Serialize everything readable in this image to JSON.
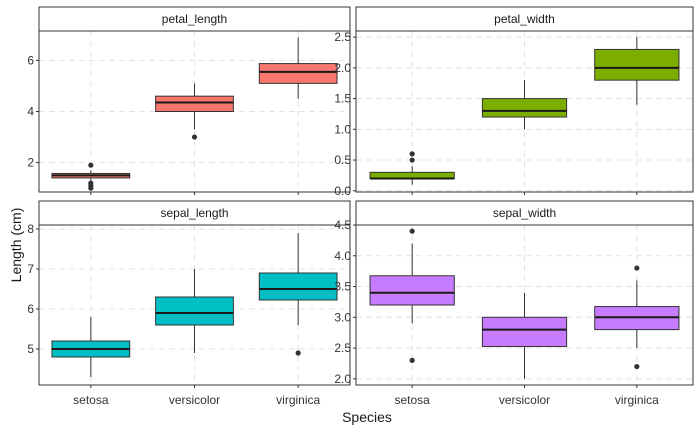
{
  "chart_data": {
    "type": "boxplot",
    "xlabel": "Species",
    "ylabel": "Length (cm)",
    "categories": [
      "setosa",
      "versicolor",
      "virginica"
    ],
    "grid": true,
    "facets": [
      {
        "name": "petal_length",
        "fill": "#F8766D",
        "ylim": [
          0.85,
          7.15
        ],
        "yticks": [
          2,
          4,
          6
        ],
        "boxes": [
          {
            "category": "setosa",
            "min": 1.3,
            "q1": 1.4,
            "median": 1.5,
            "q3": 1.575,
            "max": 1.7,
            "outliers": [
              1.0,
              1.1,
              1.2,
              1.9
            ]
          },
          {
            "category": "versicolor",
            "min": 3.3,
            "q1": 4.0,
            "median": 4.35,
            "q3": 4.6,
            "max": 5.1,
            "outliers": [
              3.0
            ]
          },
          {
            "category": "virginica",
            "min": 4.5,
            "q1": 5.1,
            "median": 5.55,
            "q3": 5.875,
            "max": 6.9,
            "outliers": []
          }
        ]
      },
      {
        "name": "petal_width",
        "fill": "#7CAE00",
        "ylim": [
          -0.02,
          2.6
        ],
        "yticks": [
          0.0,
          0.5,
          1.0,
          1.5,
          2.0,
          2.5
        ],
        "boxes": [
          {
            "category": "setosa",
            "min": 0.1,
            "q1": 0.2,
            "median": 0.2,
            "q3": 0.3,
            "max": 0.4,
            "outliers": [
              0.5,
              0.6
            ]
          },
          {
            "category": "versicolor",
            "min": 1.0,
            "q1": 1.2,
            "median": 1.3,
            "q3": 1.5,
            "max": 1.8,
            "outliers": []
          },
          {
            "category": "virginica",
            "min": 1.4,
            "q1": 1.8,
            "median": 2.0,
            "q3": 2.3,
            "max": 2.5,
            "outliers": []
          }
        ]
      },
      {
        "name": "sepal_length",
        "fill": "#00BFC4",
        "ylim": [
          4.1,
          8.1
        ],
        "yticks": [
          5,
          6,
          7,
          8
        ],
        "boxes": [
          {
            "category": "setosa",
            "min": 4.3,
            "q1": 4.8,
            "median": 5.0,
            "q3": 5.2,
            "max": 5.8,
            "outliers": []
          },
          {
            "category": "versicolor",
            "min": 4.9,
            "q1": 5.6,
            "median": 5.9,
            "q3": 6.3,
            "max": 7.0,
            "outliers": []
          },
          {
            "category": "virginica",
            "min": 5.6,
            "q1": 6.225,
            "median": 6.5,
            "q3": 6.9,
            "max": 7.9,
            "outliers": [
              4.9
            ]
          }
        ]
      },
      {
        "name": "sepal_width",
        "fill": "#C77CFF",
        "ylim": [
          1.9,
          4.5
        ],
        "yticks": [
          2.0,
          2.5,
          3.0,
          3.5,
          4.0,
          4.5
        ],
        "boxes": [
          {
            "category": "setosa",
            "min": 2.9,
            "q1": 3.2,
            "median": 3.4,
            "q3": 3.675,
            "max": 4.2,
            "outliers": [
              4.4,
              2.3
            ]
          },
          {
            "category": "versicolor",
            "min": 2.0,
            "q1": 2.525,
            "median": 2.8,
            "q3": 3.0,
            "max": 3.4,
            "outliers": []
          },
          {
            "category": "virginica",
            "min": 2.5,
            "q1": 2.8,
            "median": 3.0,
            "q3": 3.175,
            "max": 3.6,
            "outliers": [
              3.8,
              2.2
            ]
          }
        ]
      }
    ]
  }
}
